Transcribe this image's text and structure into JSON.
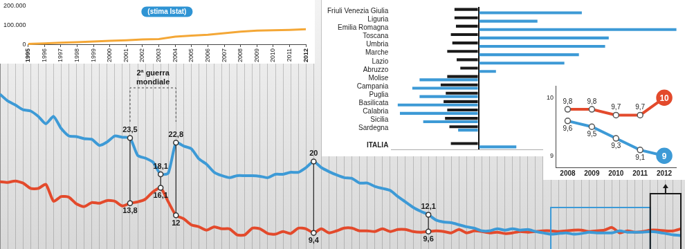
{
  "chart_data": [
    {
      "type": "line",
      "x": [
        1923,
        1924,
        1925,
        1926,
        1927,
        1928,
        1929,
        1930,
        1931,
        1932,
        1933,
        1934,
        1935,
        1936,
        1937,
        1938,
        1939,
        1940,
        1941,
        1942,
        1943,
        1944,
        1945,
        1946,
        1947,
        1948,
        1949,
        1950,
        1951,
        1952,
        1953,
        1954,
        1955,
        1956,
        1957,
        1958,
        1959,
        1960,
        1961,
        1962,
        1963,
        1964,
        1965,
        1966,
        1967,
        1968,
        1969,
        1970,
        1971,
        1972,
        1973,
        1974,
        1975,
        1976,
        1977,
        1978,
        1979,
        1980,
        1981,
        1982,
        1983,
        1984,
        1985,
        1986,
        1987,
        1988,
        1989,
        1990,
        1991,
        1992,
        1993,
        1994,
        1995,
        1996,
        1997,
        1998,
        1999,
        2000,
        2001,
        2002,
        2003,
        2004,
        2005,
        2006,
        2007,
        2008,
        2009,
        2010,
        2011,
        2012
      ],
      "series": [
        {
          "color": "#3d9ad6",
          "values": [
            30.0,
            29.0,
            28.4,
            27.7,
            27.5,
            26.7,
            25.6,
            26.7,
            24.9,
            23.8,
            23.7,
            23.4,
            23.3,
            22.4,
            22.9,
            23.8,
            23.6,
            23.5,
            20.9,
            20.5,
            19.9,
            18.1,
            18.3,
            22.8,
            22.3,
            21.9,
            20.4,
            19.6,
            18.4,
            17.9,
            17.6,
            17.9,
            17.9,
            17.9,
            17.8,
            17.6,
            18.1,
            18.1,
            18.4,
            18.4,
            19.1,
            20.0,
            19.1,
            18.5,
            18.0,
            17.6,
            17.5,
            16.8,
            16.8,
            16.3,
            16.0,
            15.7,
            14.8,
            14.0,
            13.2,
            12.6,
            12.1,
            11.3,
            11.0,
            10.9,
            10.6,
            10.3,
            10.1,
            9.7,
            9.7,
            10.0,
            9.8,
            10.0,
            9.8,
            9.9,
            9.6,
            9.4,
            9.2,
            9.3,
            9.4,
            9.2,
            9.3,
            9.5,
            9.4,
            9.4,
            9.4,
            9.7,
            9.5,
            9.5,
            9.5,
            9.6,
            9.5,
            9.3,
            9.1,
            9.0
          ],
          "value_labels": [
            null,
            null,
            null,
            null,
            null,
            null,
            null,
            null,
            null,
            null,
            null,
            null,
            null,
            null,
            null,
            null,
            null,
            "23,5",
            null,
            null,
            null,
            "18,1",
            null,
            "22,8",
            null,
            null,
            null,
            null,
            null,
            null,
            null,
            null,
            null,
            null,
            null,
            null,
            null,
            null,
            null,
            null,
            null,
            "20",
            null,
            null,
            null,
            null,
            null,
            null,
            null,
            null,
            null,
            null,
            null,
            null,
            null,
            null,
            "12,1",
            null,
            null,
            null,
            null,
            null,
            null,
            null,
            null,
            null,
            null,
            null,
            null,
            null,
            null,
            null,
            null,
            null,
            null,
            null,
            null,
            null,
            null,
            null,
            null,
            null,
            null,
            null,
            null,
            null,
            null,
            null,
            null,
            null
          ]
        },
        {
          "color": "#e34a2c",
          "values": [
            17.0,
            16.9,
            17.1,
            16.8,
            16.0,
            16.0,
            16.6,
            14.1,
            14.8,
            14.7,
            13.7,
            13.3,
            13.9,
            13.8,
            14.2,
            14.1,
            13.4,
            13.8,
            14.0,
            14.4,
            15.5,
            16.1,
            14.0,
            12.0,
            11.5,
            10.6,
            10.3,
            9.8,
            10.3,
            10.0,
            10.0,
            9.1,
            9.1,
            10.1,
            10.0,
            9.3,
            9.2,
            9.6,
            9.3,
            10.1,
            10.0,
            9.4,
            10.0,
            9.4,
            9.7,
            10.1,
            10.1,
            9.7,
            9.7,
            9.6,
            10.0,
            9.6,
            9.9,
            9.9,
            9.6,
            9.5,
            9.6,
            9.7,
            9.6,
            9.4,
            9.9,
            9.4,
            9.7,
            9.6,
            9.4,
            9.5,
            9.3,
            9.4,
            9.6,
            9.5,
            9.6,
            9.7,
            9.7,
            9.6,
            9.7,
            9.8,
            9.8,
            9.6,
            9.7,
            9.8,
            10.2,
            9.4,
            9.7,
            9.5,
            9.6,
            9.8,
            9.8,
            9.7,
            9.7,
            10.0
          ],
          "value_labels": [
            null,
            null,
            null,
            null,
            null,
            null,
            null,
            null,
            null,
            null,
            null,
            null,
            null,
            null,
            null,
            null,
            null,
            "13,8",
            null,
            null,
            null,
            "16,1",
            null,
            "12",
            null,
            null,
            null,
            null,
            null,
            null,
            null,
            null,
            null,
            null,
            null,
            null,
            null,
            null,
            null,
            null,
            null,
            "9,4",
            null,
            null,
            null,
            null,
            null,
            null,
            null,
            null,
            null,
            null,
            null,
            null,
            null,
            null,
            "9,6",
            null,
            null,
            null,
            null,
            null,
            null,
            null,
            null,
            null,
            null,
            null,
            null,
            null,
            null,
            null,
            null,
            null,
            null,
            null,
            null,
            null,
            null,
            null,
            null,
            null,
            null,
            null,
            null,
            null,
            null,
            null,
            null,
            null
          ]
        }
      ],
      "xlim": [
        1923,
        2012
      ],
      "xticks": [
        1923,
        1924,
        1925,
        1926,
        1927,
        1928,
        1929,
        1930,
        1931,
        1932,
        1933,
        1934,
        1935,
        1936,
        1937,
        1938,
        1939,
        1940,
        1941,
        1942,
        1943,
        1944,
        1945,
        1946,
        1947,
        1948,
        1949,
        1950,
        1951,
        1952,
        1953,
        1954,
        1955,
        1956,
        1957,
        1958,
        1959,
        1960,
        1961,
        1962,
        1963,
        1964,
        1965,
        1966,
        1967,
        1968,
        1969,
        1970,
        1971,
        1972,
        1973,
        1974,
        1975,
        1976,
        1977,
        1978,
        1979,
        1980,
        1981,
        1982,
        1983,
        1984,
        1985,
        1986,
        1987,
        1988,
        1989,
        1990,
        1991,
        1992,
        1993,
        1994,
        1995,
        1996,
        1997,
        1998,
        1999,
        2000,
        2001,
        2002,
        2003,
        2004,
        2005,
        2006,
        2007,
        2008,
        2009,
        2010,
        2011,
        2012
      ],
      "ylim": [
        7,
        44
      ],
      "grid": "x",
      "tick_labels": false,
      "data_labels": true,
      "annotations": [
        {
          "text": "2ª guerra mondiale",
          "x": [
            1940,
            1946
          ]
        }
      ],
      "highlight_ranges": [
        {
          "x": [
            1995,
            2008
          ],
          "color": "#3d9ad6"
        },
        {
          "x": [
            2008,
            2012
          ],
          "color": "#1a1a1a"
        }
      ]
    },
    {
      "type": "line",
      "x": [
        1995,
        1996,
        1997,
        1998,
        1999,
        2000,
        2001,
        2002,
        2003,
        2004,
        2005,
        2006,
        2007,
        2008,
        2009,
        2010,
        2011,
        2012
      ],
      "values": [
        5000,
        8000,
        11000,
        14000,
        18000,
        21000,
        24000,
        28000,
        30000,
        42000,
        48000,
        52000,
        60000,
        68000,
        73000,
        75000,
        77000,
        80000
      ],
      "color": "#f4a736",
      "xlim": [
        1995,
        2012
      ],
      "xticks": [
        1995,
        1996,
        1997,
        1998,
        1999,
        2000,
        2001,
        2002,
        2003,
        2004,
        2005,
        2006,
        2007,
        2008,
        2009,
        2010,
        2011,
        2012
      ],
      "ylim": [
        0,
        200000
      ],
      "yticks": [
        0,
        {
          "value": 100000,
          "label": "100.000"
        },
        {
          "value": 200000,
          "label": "200.000"
        }
      ],
      "grid": false,
      "annotations": [
        {
          "text": "(stima Istat)"
        }
      ]
    },
    {
      "type": "bar",
      "orientation": "horizontal",
      "categories": [
        "Friuli Venezia Giulia",
        "Liguria",
        "Emilia Romagna",
        "Toscana",
        "Umbria",
        "Marche",
        "Lazio",
        "Abruzzo",
        "Molise",
        "Campania",
        "Puglia",
        "Basilicata",
        "Calabria",
        "Sicilia",
        "Sardegna",
        null,
        "ITALIA"
      ],
      "series": [
        {
          "color": "#1a1a1a",
          "values": [
            -33,
            -33,
            -31,
            -38,
            -36,
            -43,
            -30,
            -25,
            -43,
            -52,
            -45,
            -48,
            -43,
            -46,
            -40,
            null,
            -38
          ]
        },
        {
          "color": "#3d9ad6",
          "values": [
            142,
            81,
            272,
            179,
            174,
            138,
            118,
            24,
            -81,
            -91,
            -81,
            -111,
            -108,
            -76,
            -28,
            null,
            52
          ]
        }
      ],
      "xlim": [
        -120,
        280
      ],
      "xticks": [
        0
      ],
      "grid": "x",
      "tick_labels": "y"
    },
    {
      "type": "line",
      "categories": [
        "2008",
        "2009",
        "2010",
        "2011",
        "2012"
      ],
      "series": [
        {
          "color": "#e34a2c",
          "values": [
            9.8,
            9.8,
            9.7,
            9.7,
            10
          ],
          "value_labels": [
            "9,8",
            "9,8",
            "9,7",
            "9,7",
            "10"
          ]
        },
        {
          "color": "#3d9ad6",
          "values": [
            9.6,
            9.5,
            9.3,
            9.1,
            9
          ],
          "value_labels": [
            "9,6",
            "9,5",
            "9,3",
            "9,1",
            "9"
          ]
        }
      ],
      "ylim": [
        8.8,
        10.2
      ],
      "yticks": [
        9,
        10
      ],
      "grid": false,
      "data_labels": true
    }
  ]
}
